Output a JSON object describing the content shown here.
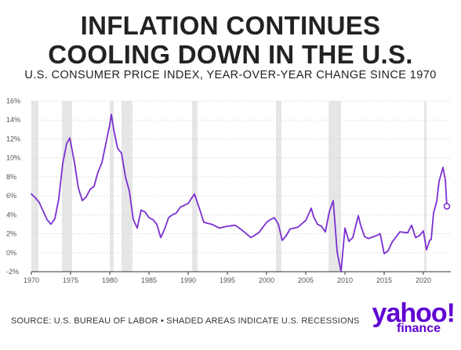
{
  "title_line1": "INFLATION CONTINUES",
  "title_line2": "COOLING DOWN IN THE U.S.",
  "subtitle": "U.S. CONSUMER PRICE INDEX, YEAR-OVER-YEAR CHANGE SINCE 1970",
  "source": "SOURCE: U.S. BUREAU OF LABOR • SHADED AREAS INDICATE U.S. RECESSIONS",
  "logo": {
    "brand": "yahoo!",
    "sub": "finance"
  },
  "colors": {
    "line": "#7a2fd0",
    "recession": "#e6e6e6",
    "grid": "#d9d9d9",
    "axis": "#333333",
    "brand": "#6001d2"
  },
  "chart_data": {
    "type": "line",
    "x_ticks": [
      1970,
      1975,
      1980,
      1985,
      1990,
      1995,
      2000,
      2005,
      2010,
      2015,
      2020
    ],
    "y_ticks": [
      -2,
      0,
      2,
      4,
      6,
      8,
      10,
      12,
      14,
      16
    ],
    "y_tick_labels": [
      "-2%",
      "0%",
      "2%",
      "4%",
      "6%",
      "8%",
      "10%",
      "12%",
      "14%",
      "16%"
    ],
    "xlim": [
      1970,
      2023.5
    ],
    "ylim": [
      -2,
      16
    ],
    "grid": "horizontal",
    "recessions": [
      [
        1970.0,
        1970.9
      ],
      [
        1973.9,
        1975.2
      ],
      [
        1980.0,
        1980.5
      ],
      [
        1981.5,
        1982.9
      ],
      [
        1990.5,
        1991.2
      ],
      [
        2001.2,
        2001.9
      ],
      [
        2007.9,
        2009.5
      ],
      [
        2020.1,
        2020.4
      ]
    ],
    "x": [
      1970.0,
      1970.5,
      1971.0,
      1971.5,
      1972.0,
      1972.5,
      1973.0,
      1973.5,
      1974.0,
      1974.5,
      1974.9,
      1975.5,
      1976.0,
      1976.5,
      1977.0,
      1977.5,
      1978.0,
      1978.5,
      1979.0,
      1979.5,
      1980.0,
      1980.2,
      1980.5,
      1981.0,
      1981.5,
      1982.0,
      1982.5,
      1983.0,
      1983.5,
      1984.0,
      1984.5,
      1985.0,
      1985.5,
      1986.0,
      1986.5,
      1987.0,
      1987.5,
      1988.0,
      1988.5,
      1989.0,
      1989.5,
      1990.0,
      1990.8,
      1991.5,
      1992.0,
      1993.0,
      1994.0,
      1995.0,
      1996.0,
      1997.0,
      1998.0,
      1999.0,
      2000.0,
      2000.5,
      2001.0,
      2001.5,
      2002.0,
      2002.5,
      2003.0,
      2004.0,
      2005.0,
      2005.7,
      2006.0,
      2006.5,
      2007.0,
      2007.5,
      2008.0,
      2008.5,
      2009.0,
      2009.5,
      2010.0,
      2010.5,
      2011.0,
      2011.7,
      2012.0,
      2012.5,
      2013.0,
      2014.0,
      2014.5,
      2015.0,
      2015.5,
      2016.0,
      2017.0,
      2018.0,
      2018.5,
      2019.0,
      2019.5,
      2020.0,
      2020.4,
      2020.8,
      2021.0,
      2021.3,
      2021.7,
      2022.0,
      2022.5,
      2022.8,
      2023.0
    ],
    "values": [
      6.2,
      5.8,
      5.3,
      4.4,
      3.5,
      3.0,
      3.6,
      5.7,
      9.4,
      11.5,
      12.1,
      9.5,
      6.8,
      5.5,
      5.9,
      6.7,
      7.0,
      8.5,
      9.5,
      11.5,
      13.5,
      14.6,
      13.0,
      11.0,
      10.5,
      8.0,
      6.5,
      3.5,
      2.6,
      4.5,
      4.3,
      3.7,
      3.5,
      3.0,
      1.6,
      2.5,
      3.7,
      4.0,
      4.2,
      4.8,
      5.0,
      5.2,
      6.2,
      4.5,
      3.2,
      3.0,
      2.6,
      2.8,
      2.9,
      2.3,
      1.6,
      2.1,
      3.2,
      3.5,
      3.7,
      3.0,
      1.3,
      1.8,
      2.5,
      2.7,
      3.4,
      4.7,
      3.8,
      3.0,
      2.8,
      2.2,
      4.3,
      5.5,
      0.1,
      -2.0,
      2.6,
      1.2,
      1.6,
      3.9,
      2.9,
      1.7,
      1.5,
      1.8,
      2.0,
      -0.1,
      0.2,
      1.1,
      2.2,
      2.1,
      2.9,
      1.6,
      1.8,
      2.3,
      0.3,
      1.3,
      1.4,
      4.2,
      5.4,
      7.5,
      9.0,
      7.7,
      4.9
    ]
  }
}
